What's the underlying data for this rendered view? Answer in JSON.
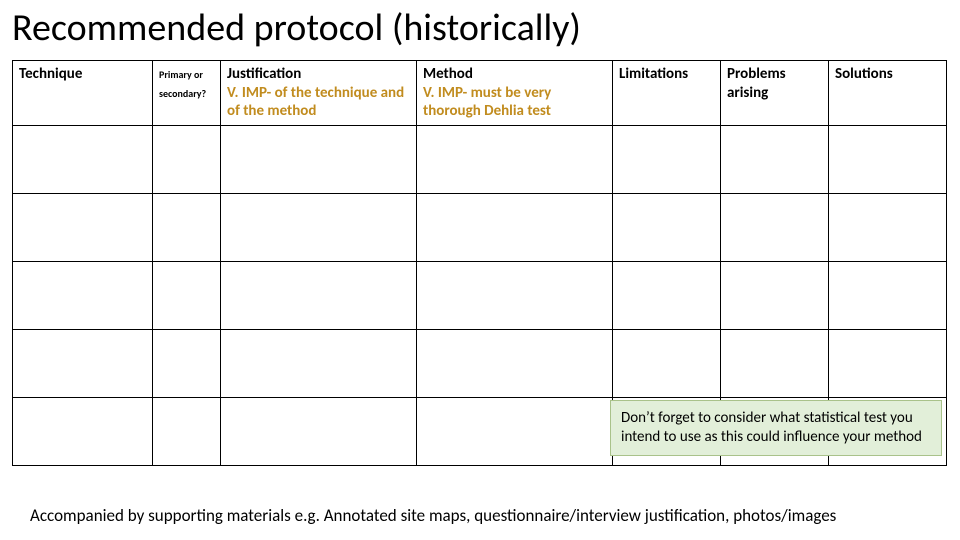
{
  "title": "Recommended protocol (historically)",
  "table": {
    "columns": [
      {
        "key": "technique",
        "label": "Technique",
        "note": "",
        "small": false
      },
      {
        "key": "primsec",
        "label": "Primary or secondary?",
        "note": "",
        "small": true
      },
      {
        "key": "just",
        "label": "Justification",
        "note": "V. IMP- of the technique and of the method",
        "small": false
      },
      {
        "key": "method",
        "label": "Method",
        "note": "V. IMP- must be very thorough Dehlia test",
        "small": false
      },
      {
        "key": "limits",
        "label": "Limitations",
        "note": "",
        "small": false
      },
      {
        "key": "problems",
        "label": "Problems arising",
        "note": "",
        "small": false
      },
      {
        "key": "solutions",
        "label": "Solutions",
        "note": "",
        "small": false
      }
    ],
    "body_row_count": 5,
    "border_color": "#000000",
    "note_color": "#c18c1f",
    "header_fontsize": 15,
    "small_header_fontsize": 10
  },
  "callout": {
    "text": "Don’t forget to consider what statistical test you intend to use as this could influence your method",
    "bg_color": "#e2efd9",
    "border_color": "#a9c28a",
    "fontsize": 15
  },
  "footnote": "Accompanied by supporting materials e.g. Annotated site maps, questionnaire/interview justification,  photos/images"
}
